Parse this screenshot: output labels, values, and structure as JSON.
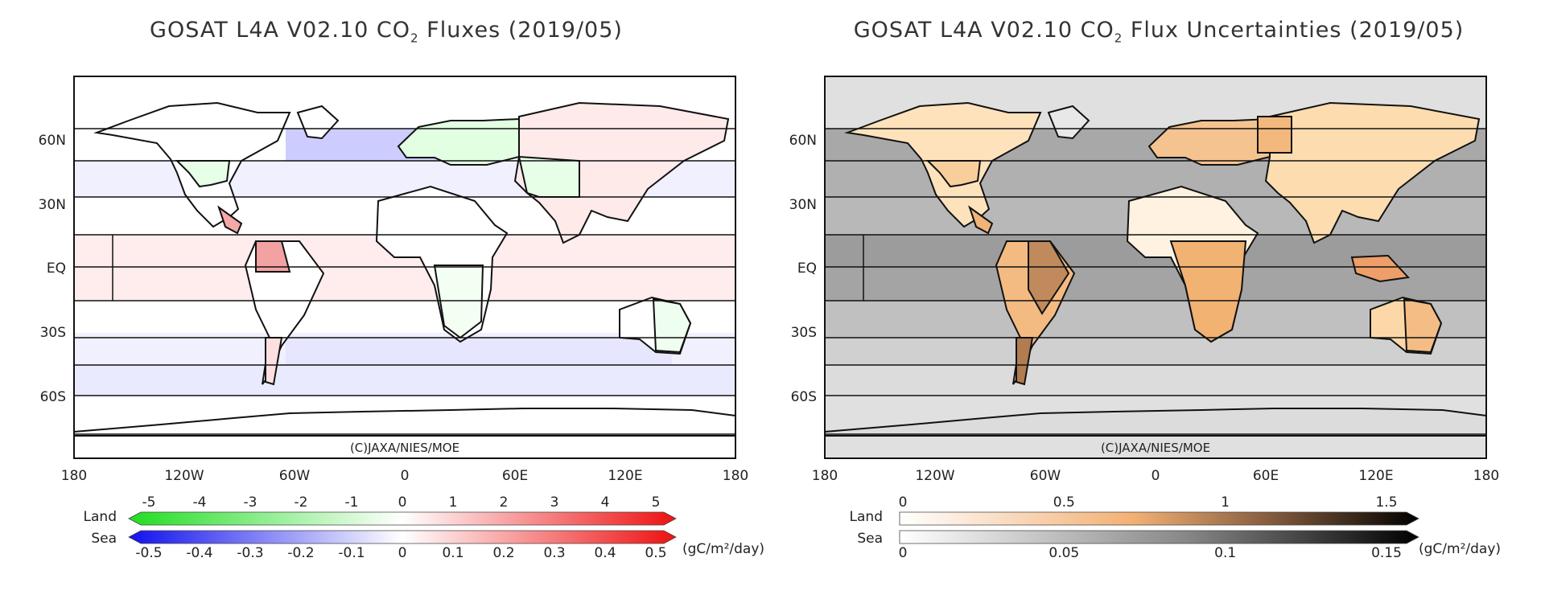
{
  "left_panel": {
    "title_prefix": "GOSAT L4A V02.10 CO",
    "title_sub": "2",
    "title_suffix": " Fluxes (2019/05)",
    "copyright": "(C)JAXA/NIES/MOE",
    "lat_labels": [
      "60N",
      "30N",
      "EQ",
      "30S",
      "60S"
    ],
    "lon_labels": [
      "180",
      "120W",
      "60W",
      "0",
      "60E",
      "120E",
      "180"
    ],
    "colorbar": {
      "land_label": "Land",
      "sea_label": "Sea",
      "land_ticks": [
        "-5",
        "-4",
        "-3",
        "-2",
        "-1",
        "0",
        "1",
        "2",
        "3",
        "4",
        "5"
      ],
      "sea_ticks": [
        "-0.5",
        "-0.4",
        "-0.3",
        "-0.2",
        "-0.1",
        "0",
        "0.1",
        "0.2",
        "0.3",
        "0.4",
        "0.5"
      ],
      "unit": "(gC/m²/day)",
      "land_colors": [
        "#22dd22",
        "#ffffff",
        "#ee1111"
      ],
      "sea_colors": [
        "#1111ee",
        "#ffffff",
        "#ee1111"
      ]
    }
  },
  "right_panel": {
    "title_prefix": "GOSAT L4A V02.10 CO",
    "title_sub": "2",
    "title_suffix": " Flux Uncertainties (2019/05)",
    "copyright": "(C)JAXA/NIES/MOE",
    "lat_labels": [
      "60N",
      "30N",
      "EQ",
      "30S",
      "60S"
    ],
    "lon_labels": [
      "180",
      "120W",
      "60W",
      "0",
      "60E",
      "120E",
      "180"
    ],
    "colorbar": {
      "land_label": "Land",
      "sea_label": "Sea",
      "land_ticks": [
        "0",
        "0.5",
        "1",
        "1.5"
      ],
      "sea_ticks": [
        "0",
        "0.05",
        "0.1",
        "0.15"
      ],
      "unit": "(gC/m²/day)",
      "land_colors": [
        "#ffffff",
        "#f3b074",
        "#8a6040",
        "#000000"
      ],
      "sea_colors": [
        "#ffffff",
        "#888888",
        "#000000"
      ]
    }
  }
}
